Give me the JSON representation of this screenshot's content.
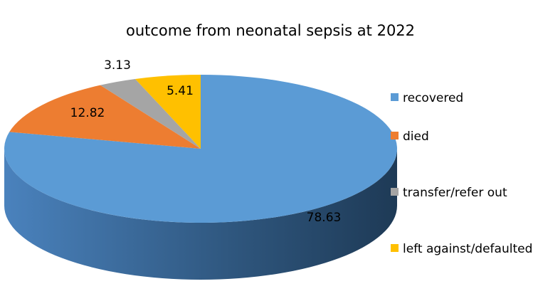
{
  "chart_data": {
    "type": "pie",
    "style": "3d",
    "title": "outcome from neonatal sepsis at 2022",
    "categories": [
      "recovered",
      "died",
      "transfer/refer out",
      "left against/defaulted"
    ],
    "values": [
      78.63,
      12.82,
      3.13,
      5.41
    ],
    "colors": [
      "#5B9BD5",
      "#ED7D31",
      "#A5A5A5",
      "#FFC000"
    ],
    "data_labels": [
      "78.63",
      "12.82",
      "3.13",
      "5.41"
    ],
    "legend_position": "right"
  }
}
